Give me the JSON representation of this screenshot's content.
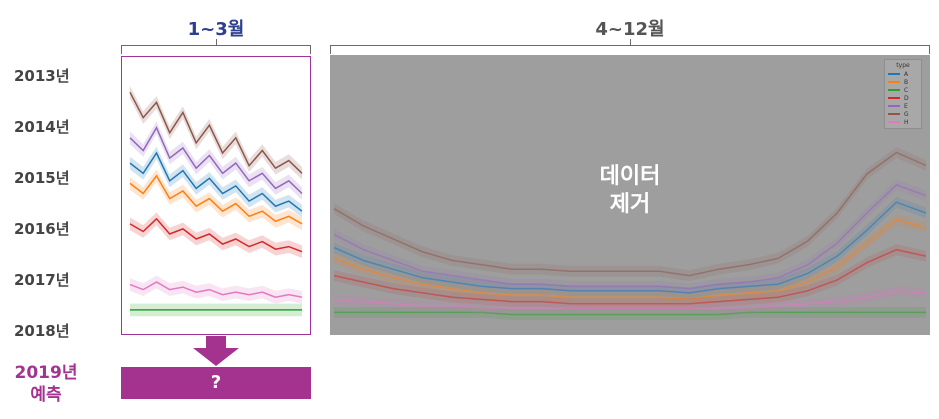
{
  "section_labels": {
    "jan_mar": "1~3월",
    "apr_dec": "4~12월"
  },
  "years": [
    "2013년",
    "2014년",
    "2015년",
    "2016년",
    "2017년",
    "2018년"
  ],
  "removed_label": "데이터\n제거",
  "prediction": {
    "year_label": "2019년",
    "sub_label": "예측",
    "bar_text": "?"
  },
  "colors": {
    "jan_mar_title": "#2d3f8f",
    "apr_dec_title": "#555555",
    "accent": "#a3338f",
    "removed_overlay": "#9e9e9e"
  },
  "chart_data": [
    {
      "type": "line",
      "title": "1~3월",
      "xlabel": "",
      "ylabel": "",
      "grid": false,
      "x": [
        0,
        1,
        2,
        3,
        4,
        5,
        6,
        7,
        8,
        9,
        10,
        11,
        12,
        13
      ],
      "series": [
        {
          "name": "A",
          "color": "#1f77b4",
          "values": [
            0.62,
            0.58,
            0.66,
            0.55,
            0.59,
            0.52,
            0.56,
            0.5,
            0.53,
            0.47,
            0.5,
            0.45,
            0.47,
            0.43
          ]
        },
        {
          "name": "B",
          "color": "#ff7f0e",
          "values": [
            0.54,
            0.5,
            0.57,
            0.48,
            0.51,
            0.45,
            0.48,
            0.43,
            0.46,
            0.41,
            0.43,
            0.39,
            0.41,
            0.38
          ]
        },
        {
          "name": "C",
          "color": "#2ca02c",
          "values": [
            0.04,
            0.04,
            0.04,
            0.04,
            0.04,
            0.04,
            0.04,
            0.04,
            0.04,
            0.04,
            0.04,
            0.04,
            0.04,
            0.04
          ]
        },
        {
          "name": "D",
          "color": "#d62728",
          "values": [
            0.38,
            0.35,
            0.4,
            0.34,
            0.36,
            0.32,
            0.34,
            0.3,
            0.32,
            0.29,
            0.31,
            0.28,
            0.29,
            0.27
          ]
        },
        {
          "name": "E",
          "color": "#9467bd",
          "values": [
            0.72,
            0.67,
            0.76,
            0.64,
            0.68,
            0.6,
            0.65,
            0.58,
            0.62,
            0.55,
            0.58,
            0.52,
            0.55,
            0.5
          ]
        },
        {
          "name": "G",
          "color": "#8c564b",
          "values": [
            0.9,
            0.8,
            0.86,
            0.74,
            0.82,
            0.7,
            0.77,
            0.66,
            0.72,
            0.61,
            0.67,
            0.6,
            0.63,
            0.58
          ]
        },
        {
          "name": "H",
          "color": "#e377c2",
          "values": [
            0.14,
            0.12,
            0.15,
            0.12,
            0.13,
            0.11,
            0.12,
            0.1,
            0.11,
            0.1,
            0.11,
            0.09,
            0.1,
            0.09
          ]
        }
      ]
    },
    {
      "type": "line",
      "title": "4~12월",
      "xlabel": "",
      "ylabel": "",
      "grid": false,
      "legend_position": "top-right",
      "legend_title": "type",
      "legend": [
        "A",
        "B",
        "C",
        "D",
        "E",
        "G",
        "H"
      ],
      "x": [
        0,
        1,
        2,
        3,
        4,
        5,
        6,
        7,
        8,
        9,
        10,
        11,
        12,
        13,
        14,
        15,
        16,
        17,
        18,
        19,
        20
      ],
      "series": [
        {
          "name": "A",
          "color": "#1f77b4",
          "values": [
            0.34,
            0.28,
            0.24,
            0.2,
            0.18,
            0.16,
            0.15,
            0.15,
            0.14,
            0.14,
            0.14,
            0.14,
            0.13,
            0.15,
            0.16,
            0.17,
            0.22,
            0.3,
            0.42,
            0.55,
            0.5
          ]
        },
        {
          "name": "B",
          "color": "#ff7f0e",
          "values": [
            0.29,
            0.24,
            0.2,
            0.17,
            0.15,
            0.13,
            0.12,
            0.12,
            0.11,
            0.11,
            0.11,
            0.11,
            0.1,
            0.12,
            0.13,
            0.14,
            0.18,
            0.25,
            0.36,
            0.47,
            0.43
          ]
        },
        {
          "name": "C",
          "color": "#2ca02c",
          "values": [
            0.04,
            0.04,
            0.04,
            0.04,
            0.04,
            0.04,
            0.03,
            0.03,
            0.03,
            0.03,
            0.03,
            0.03,
            0.03,
            0.03,
            0.04,
            0.04,
            0.04,
            0.04,
            0.04,
            0.04,
            0.04
          ]
        },
        {
          "name": "D",
          "color": "#d62728",
          "values": [
            0.21,
            0.18,
            0.15,
            0.13,
            0.11,
            0.1,
            0.09,
            0.09,
            0.08,
            0.08,
            0.08,
            0.08,
            0.08,
            0.09,
            0.1,
            0.11,
            0.14,
            0.19,
            0.27,
            0.33,
            0.3
          ]
        },
        {
          "name": "E",
          "color": "#9467bd",
          "values": [
            0.4,
            0.33,
            0.28,
            0.23,
            0.21,
            0.19,
            0.17,
            0.17,
            0.16,
            0.16,
            0.16,
            0.16,
            0.15,
            0.17,
            0.18,
            0.2,
            0.26,
            0.36,
            0.5,
            0.63,
            0.58
          ]
        },
        {
          "name": "G",
          "color": "#8c564b",
          "values": [
            0.52,
            0.44,
            0.38,
            0.32,
            0.28,
            0.26,
            0.24,
            0.24,
            0.23,
            0.23,
            0.23,
            0.23,
            0.21,
            0.24,
            0.26,
            0.29,
            0.37,
            0.5,
            0.68,
            0.78,
            0.72
          ]
        },
        {
          "name": "H",
          "color": "#e377c2",
          "values": [
            0.1,
            0.09,
            0.08,
            0.07,
            0.07,
            0.06,
            0.06,
            0.06,
            0.06,
            0.06,
            0.06,
            0.06,
            0.06,
            0.06,
            0.06,
            0.07,
            0.08,
            0.09,
            0.11,
            0.14,
            0.13
          ]
        }
      ]
    }
  ]
}
